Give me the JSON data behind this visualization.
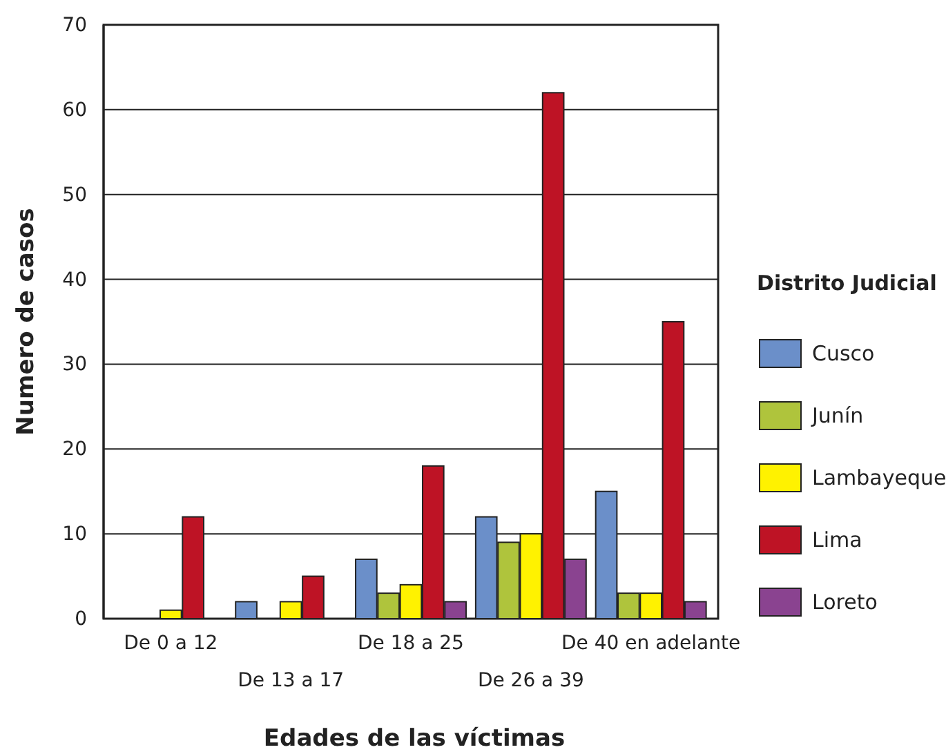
{
  "chart_data": {
    "type": "bar",
    "xlabel": "Edades de las víctimas",
    "ylabel": "Numero de casos",
    "legend_title": "Distrito Judicial",
    "categories": [
      "De 0 a 12",
      "De 13 a 17",
      "De 18 a 25",
      "De 26 a 39",
      "De 40 en adelante"
    ],
    "series": [
      {
        "name": "Cusco",
        "color": "#6b8fc9",
        "values": [
          0,
          2,
          7,
          12,
          15
        ]
      },
      {
        "name": "Junín",
        "color": "#afc43c",
        "values": [
          0,
          0,
          3,
          9,
          3
        ]
      },
      {
        "name": "Lambayeque",
        "color": "#fff200",
        "values": [
          1,
          2,
          4,
          10,
          3
        ]
      },
      {
        "name": "Lima",
        "color": "#be1325",
        "values": [
          12,
          5,
          18,
          62,
          35
        ]
      },
      {
        "name": "Loreto",
        "color": "#8a4390",
        "values": [
          0,
          0,
          2,
          7,
          2
        ]
      }
    ],
    "ylim": [
      0,
      70
    ],
    "yticks": [
      0,
      10,
      20,
      30,
      40,
      50,
      60,
      70
    ],
    "grid": "y",
    "legend": "right"
  }
}
